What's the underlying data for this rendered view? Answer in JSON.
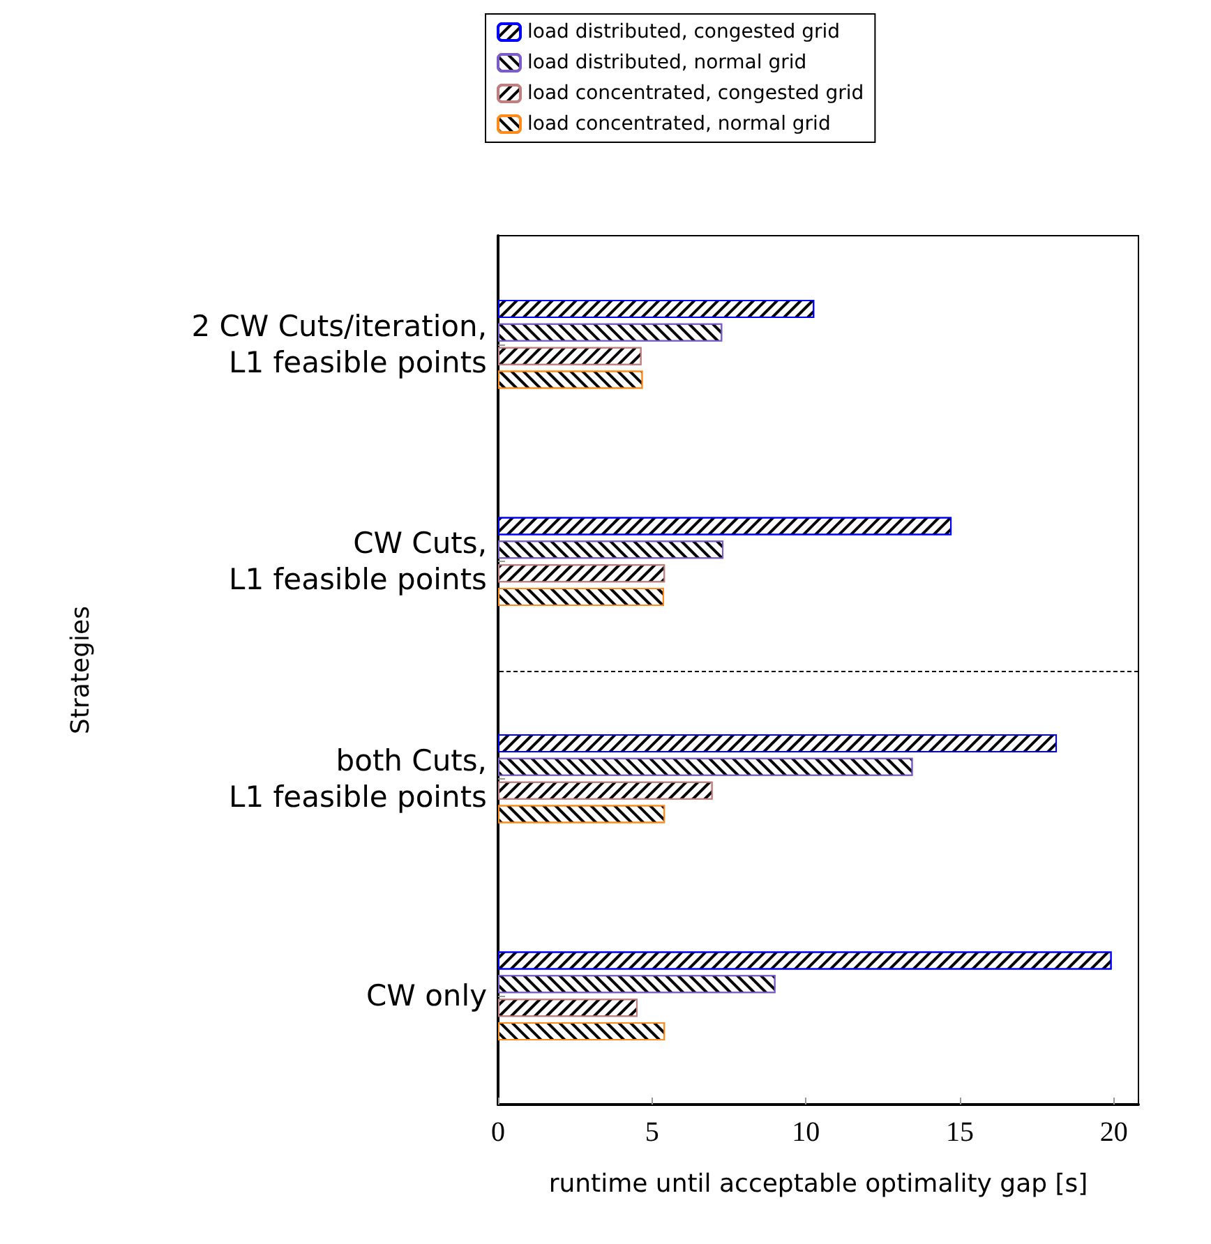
{
  "chart_data": {
    "type": "bar",
    "orientation": "horizontal",
    "xlabel": "runtime until acceptable optimality gap [s]",
    "ylabel": "Strategies",
    "categories": [
      "2 CW Cuts/iteration,\nL1 feasible points",
      "CW Cuts,\nL1 feasible points",
      "both Cuts,\nL1 feasible points",
      "CW only"
    ],
    "series": [
      {
        "name": "load distributed, congested grid",
        "color": "#0000ff",
        "values": [
          10.27,
          14.73,
          18.15,
          19.93
        ]
      },
      {
        "name": "load distributed, normal grid",
        "color": "#7b5cc9",
        "values": [
          7.28,
          7.32,
          13.47,
          9.01
        ]
      },
      {
        "name": "load concentrated, congested grid",
        "color": "#c07f7f",
        "values": [
          4.66,
          5.42,
          6.97,
          4.53
        ]
      },
      {
        "name": "load concentrated, normal grid",
        "color": "#ff8c1a",
        "values": [
          4.7,
          5.39,
          5.42,
          5.42
        ]
      }
    ],
    "xlim": [
      0,
      20.8
    ],
    "xticks": [
      0,
      5,
      10,
      15,
      20
    ],
    "grid": false,
    "legend": "top"
  }
}
